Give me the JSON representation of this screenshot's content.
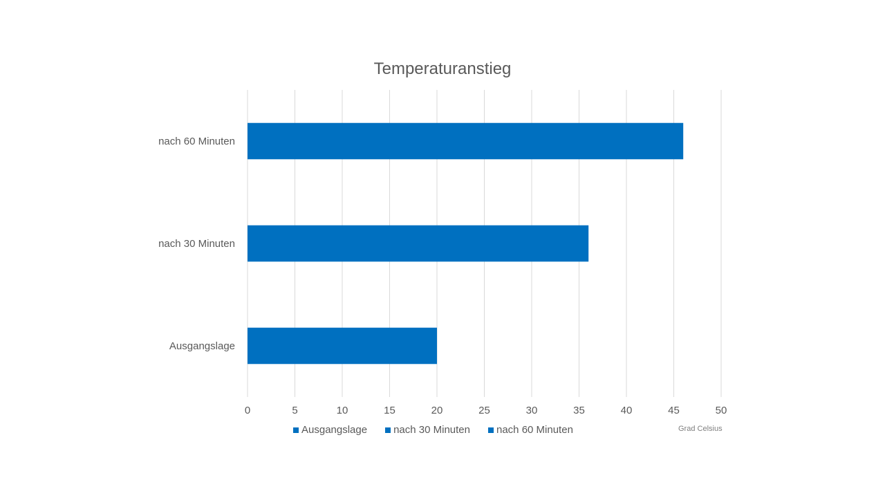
{
  "chart_data": {
    "type": "bar",
    "orientation": "horizontal",
    "title": "Temperaturanstieg",
    "categories": [
      "Ausgangslage",
      "nach 30 Minuten",
      "nach 60 Minuten"
    ],
    "values": [
      20,
      36,
      46
    ],
    "xlim": [
      0,
      50
    ],
    "xticks": [
      0,
      5,
      10,
      15,
      20,
      25,
      30,
      35,
      40,
      45,
      50
    ],
    "unit_label": "Grad Celsius",
    "grid": "vertical",
    "legend": {
      "placement": "bottom",
      "entries": [
        "Ausgangslage",
        "nach 30 Minuten",
        "nach 60 Minuten"
      ]
    },
    "bar_color": "#0070c0",
    "grid_color": "#d9d9d9",
    "text_color": "#595959"
  }
}
